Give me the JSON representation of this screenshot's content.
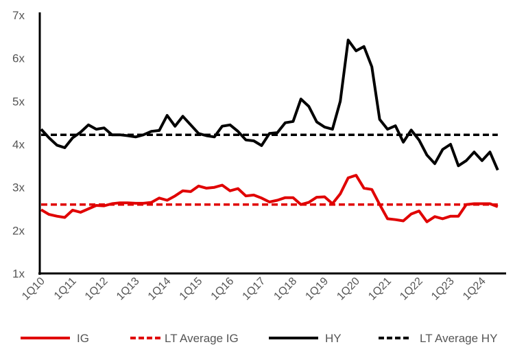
{
  "chart_data": {
    "type": "line",
    "title": "",
    "xlabel": "",
    "ylabel": "",
    "ylim": [
      1,
      7
    ],
    "y_ticks": [
      "1x",
      "2x",
      "3x",
      "4x",
      "5x",
      "6x",
      "7x"
    ],
    "x_tick_labels": [
      "1Q10",
      "1Q11",
      "1Q12",
      "1Q13",
      "1Q14",
      "1Q15",
      "1Q16",
      "1Q17",
      "1Q18",
      "1Q19",
      "1Q20",
      "1Q21",
      "1Q22",
      "1Q23",
      "1Q24"
    ],
    "x_start": "1Q10",
    "x_end": "3Q24",
    "grid": false,
    "legend_position": "bottom",
    "series": [
      {
        "name": "IG",
        "color": "#e00000",
        "style": "solid",
        "values": [
          2.48,
          2.37,
          2.33,
          2.3,
          2.47,
          2.42,
          2.5,
          2.58,
          2.57,
          2.62,
          2.64,
          2.64,
          2.63,
          2.63,
          2.65,
          2.75,
          2.7,
          2.8,
          2.92,
          2.9,
          3.03,
          2.98,
          3.0,
          3.05,
          2.92,
          2.97,
          2.8,
          2.82,
          2.75,
          2.66,
          2.7,
          2.76,
          2.76,
          2.6,
          2.65,
          2.77,
          2.78,
          2.62,
          2.85,
          3.22,
          3.28,
          2.98,
          2.95,
          2.6,
          2.27,
          2.25,
          2.22,
          2.38,
          2.45,
          2.2,
          2.32,
          2.27,
          2.33,
          2.33,
          2.6,
          2.62,
          2.62,
          2.62,
          2.55
        ]
      },
      {
        "name": "LT Average IG",
        "color": "#e00000",
        "style": "dashed",
        "constant": 2.6
      },
      {
        "name": "HY",
        "color": "#000000",
        "style": "solid",
        "values": [
          4.35,
          4.15,
          3.98,
          3.92,
          4.15,
          4.28,
          4.45,
          4.35,
          4.38,
          4.22,
          4.22,
          4.2,
          4.17,
          4.22,
          4.3,
          4.32,
          4.67,
          4.42,
          4.65,
          4.45,
          4.25,
          4.2,
          4.17,
          4.42,
          4.45,
          4.3,
          4.1,
          4.08,
          3.97,
          4.25,
          4.27,
          4.5,
          4.53,
          5.05,
          4.88,
          4.52,
          4.4,
          4.35,
          5.0,
          6.42,
          6.17,
          6.27,
          5.8,
          4.58,
          4.35,
          4.43,
          4.05,
          4.33,
          4.1,
          3.75,
          3.55,
          3.88,
          4.0,
          3.5,
          3.62,
          3.82,
          3.62,
          3.82,
          3.4
        ]
      },
      {
        "name": "LT Average HY",
        "color": "#000000",
        "style": "dashed",
        "constant": 4.22
      }
    ]
  }
}
